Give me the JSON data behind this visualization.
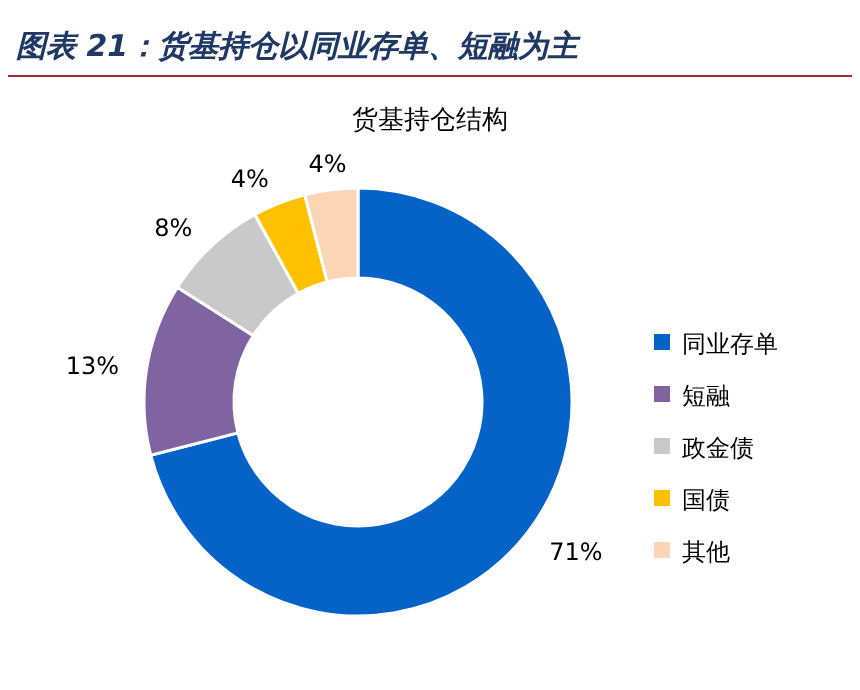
{
  "chart_data": {
    "type": "donut",
    "title": "图表 21：货基持仓以同业存单、短融为主",
    "subtitle": "货基持仓结构",
    "categories": [
      "同业存单",
      "短融",
      "政金债",
      "国债",
      "其他"
    ],
    "values": [
      71,
      13,
      8,
      4,
      4
    ],
    "colors": [
      "#0563c8",
      "#8064a2",
      "#c9c9c9",
      "#ffc000",
      "#fbd5b5"
    ],
    "value_labels": [
      "71%",
      "13%",
      "8%",
      "4%",
      "4%"
    ],
    "legend": "right"
  }
}
